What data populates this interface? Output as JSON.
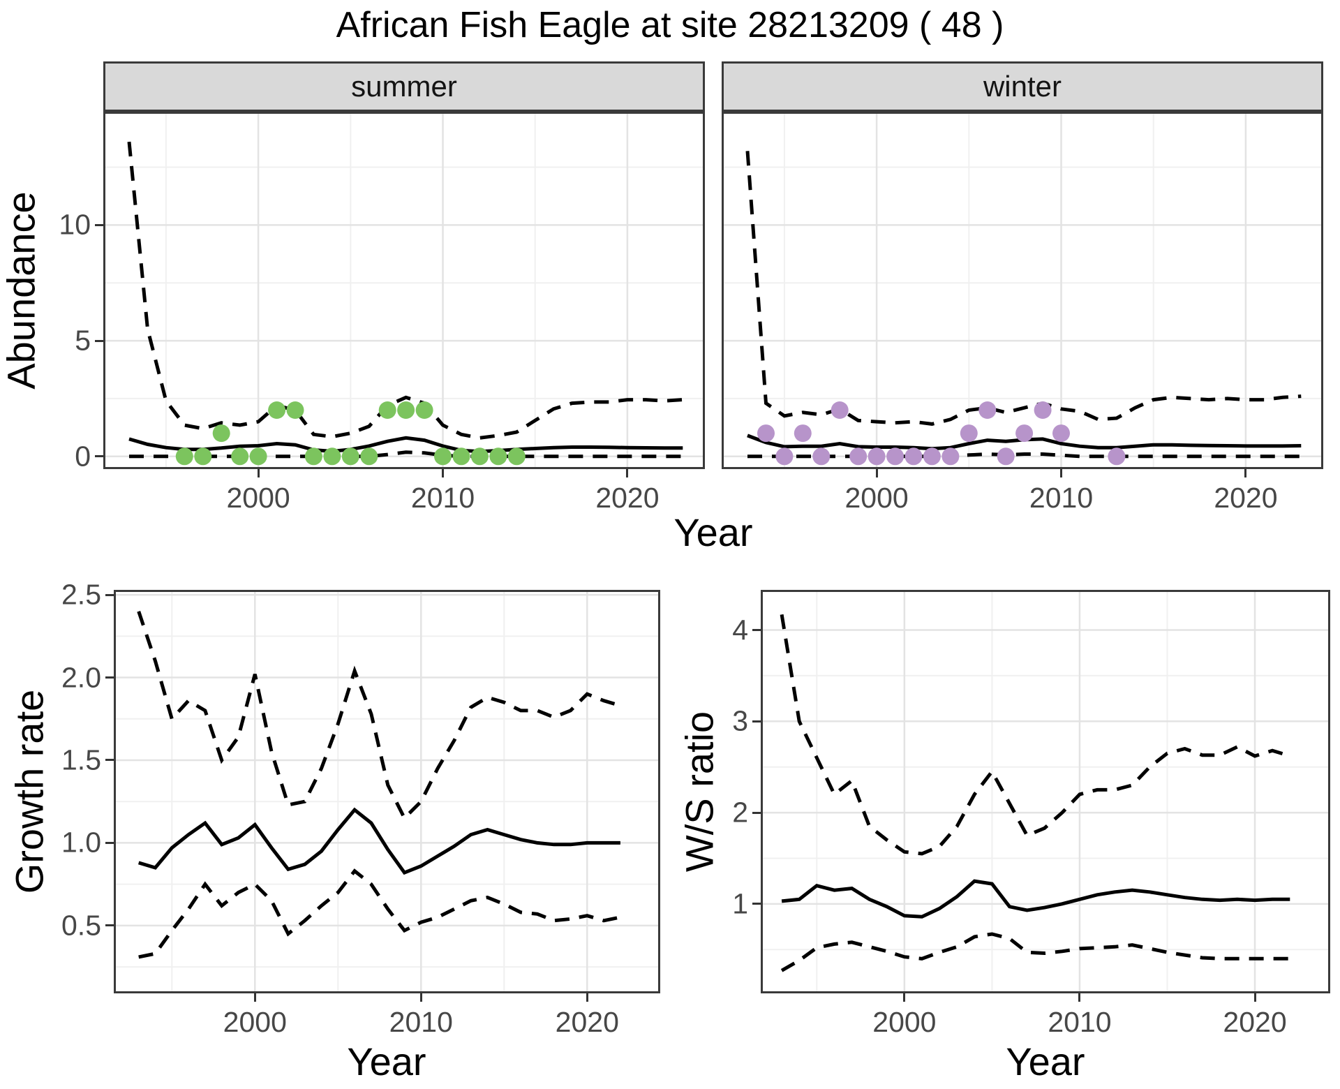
{
  "title": "African Fish Eagle at site 28213209 ( 48 )",
  "colors": {
    "summer_points": "#7cc45e",
    "winter_points": "#b794ca",
    "line": "#000000",
    "grid_major": "#e3e3e3",
    "grid_minor": "#f0f0f0",
    "panel_border": "#3a3a3a",
    "tick_text": "#474747",
    "strip_bg": "#d9d9d9"
  },
  "chart_data": [
    {
      "id": "abundance-summer",
      "type": "line",
      "facet": "summer",
      "xlabel": "Year",
      "ylabel": "Abundance",
      "xlim": [
        1991.6,
        2024.2
      ],
      "ylim": [
        -0.55,
        14.9
      ],
      "xticks": [
        2000,
        2010,
        2020
      ],
      "xtick_labels": [
        "2000",
        "2010",
        "2020"
      ],
      "xticks_minor": [
        1995,
        2005,
        2015
      ],
      "yticks": [
        0,
        5,
        10
      ],
      "ytick_labels": [
        "0",
        "5",
        "10"
      ],
      "yticks_minor": [
        2.5,
        7.5,
        12.5
      ],
      "x": [
        1993,
        1994,
        1995,
        1996,
        1997,
        1998,
        1999,
        2000,
        2001,
        2002,
        2003,
        2004,
        2005,
        2006,
        2007,
        2008,
        2009,
        2010,
        2011,
        2012,
        2013,
        2014,
        2015,
        2016,
        2017,
        2018,
        2019,
        2020,
        2021,
        2022,
        2023
      ],
      "series": [
        {
          "name": "median",
          "style": "solid",
          "values": [
            0.75,
            0.52,
            0.38,
            0.3,
            0.3,
            0.36,
            0.44,
            0.46,
            0.55,
            0.5,
            0.28,
            0.22,
            0.3,
            0.45,
            0.65,
            0.8,
            0.7,
            0.45,
            0.26,
            0.21,
            0.25,
            0.3,
            0.34,
            0.38,
            0.4,
            0.4,
            0.39,
            0.38,
            0.37,
            0.36,
            0.36
          ]
        },
        {
          "name": "upper-ci",
          "style": "dashed",
          "values": [
            13.6,
            5.5,
            2.4,
            1.35,
            1.2,
            1.45,
            1.35,
            1.5,
            2.2,
            2.0,
            0.95,
            0.85,
            1.0,
            1.3,
            2.2,
            2.55,
            2.3,
            1.35,
            0.95,
            0.8,
            0.9,
            1.05,
            1.55,
            2.05,
            2.3,
            2.35,
            2.35,
            2.45,
            2.45,
            2.4,
            2.45
          ]
        },
        {
          "name": "lower-ci",
          "style": "dashed",
          "values": [
            0,
            0,
            0,
            0,
            0,
            0,
            0,
            0,
            0,
            0,
            0,
            0,
            0,
            0,
            0.08,
            0.18,
            0.15,
            0.05,
            0,
            0,
            0,
            0,
            0,
            0,
            0,
            0,
            0,
            0,
            0,
            0,
            0
          ]
        }
      ],
      "points": {
        "name": "observed-counts",
        "color": "#7cc45e",
        "xy": [
          [
            1996,
            0
          ],
          [
            1997,
            0
          ],
          [
            1998,
            1
          ],
          [
            1999,
            0
          ],
          [
            2000,
            0
          ],
          [
            2001,
            2
          ],
          [
            2002,
            2
          ],
          [
            2003,
            0
          ],
          [
            2004,
            0
          ],
          [
            2005,
            0
          ],
          [
            2006,
            0
          ],
          [
            2007,
            2
          ],
          [
            2008,
            2
          ],
          [
            2009,
            2
          ],
          [
            2010,
            0
          ],
          [
            2011,
            0
          ],
          [
            2012,
            0
          ],
          [
            2013,
            0
          ],
          [
            2014,
            0
          ]
        ]
      }
    },
    {
      "id": "abundance-winter",
      "type": "line",
      "facet": "winter",
      "xlabel": "Year",
      "ylabel": "Abundance",
      "xlim": [
        1991.6,
        2024.2
      ],
      "ylim": [
        -0.55,
        14.9
      ],
      "xticks": [
        2000,
        2010,
        2020
      ],
      "xtick_labels": [
        "2000",
        "2010",
        "2020"
      ],
      "xticks_minor": [
        1995,
        2005,
        2015
      ],
      "yticks": [
        0,
        5,
        10
      ],
      "ytick_labels": [],
      "yticks_minor": [
        2.5,
        7.5,
        12.5
      ],
      "x": [
        1993,
        1994,
        1995,
        1996,
        1997,
        1998,
        1999,
        2000,
        2001,
        2002,
        2003,
        2004,
        2005,
        2006,
        2007,
        2008,
        2009,
        2010,
        2011,
        2012,
        2013,
        2014,
        2015,
        2016,
        2017,
        2018,
        2019,
        2020,
        2021,
        2022,
        2023
      ],
      "series": [
        {
          "name": "median",
          "style": "solid",
          "values": [
            0.9,
            0.6,
            0.42,
            0.44,
            0.44,
            0.55,
            0.42,
            0.4,
            0.4,
            0.38,
            0.33,
            0.38,
            0.55,
            0.7,
            0.65,
            0.72,
            0.75,
            0.55,
            0.44,
            0.38,
            0.38,
            0.44,
            0.5,
            0.5,
            0.48,
            0.47,
            0.46,
            0.45,
            0.45,
            0.45,
            0.46
          ]
        },
        {
          "name": "upper-ci",
          "style": "dashed",
          "values": [
            13.2,
            2.3,
            1.75,
            1.9,
            1.8,
            2.05,
            1.55,
            1.5,
            1.45,
            1.5,
            1.4,
            1.6,
            2.0,
            2.1,
            1.9,
            2.1,
            2.3,
            2.05,
            1.95,
            1.6,
            1.65,
            2.1,
            2.45,
            2.55,
            2.5,
            2.45,
            2.5,
            2.45,
            2.45,
            2.55,
            2.6
          ]
        },
        {
          "name": "lower-ci",
          "style": "dashed",
          "values": [
            0,
            0,
            0,
            0,
            0,
            0,
            0,
            0,
            0,
            0,
            0,
            0,
            0.06,
            0.1,
            0.07,
            0.1,
            0.1,
            0.05,
            0,
            0,
            0,
            0,
            0,
            0,
            0,
            0,
            0,
            0,
            0,
            0,
            0
          ]
        }
      ],
      "points": {
        "name": "observed-counts",
        "color": "#b794ca",
        "xy": [
          [
            1994,
            1
          ],
          [
            1995,
            0
          ],
          [
            1996,
            1
          ],
          [
            1997,
            0
          ],
          [
            1998,
            2
          ],
          [
            1999,
            0
          ],
          [
            2000,
            0
          ],
          [
            2001,
            0
          ],
          [
            2002,
            0
          ],
          [
            2003,
            0
          ],
          [
            2004,
            0
          ],
          [
            2005,
            1
          ],
          [
            2006,
            2
          ],
          [
            2007,
            0
          ],
          [
            2008,
            1
          ],
          [
            2009,
            2
          ],
          [
            2010,
            1
          ],
          [
            2013,
            0
          ]
        ]
      }
    },
    {
      "id": "growth-rate",
      "type": "line",
      "facet": "",
      "xlabel": "Year",
      "ylabel": "Growth rate",
      "xlim": [
        1991.5,
        2024.4
      ],
      "ylim": [
        0.09,
        2.53
      ],
      "xticks": [
        2000,
        2010,
        2020
      ],
      "xtick_labels": [
        "2000",
        "2010",
        "2020"
      ],
      "xticks_minor": [
        1995,
        2005,
        2015
      ],
      "yticks": [
        0.5,
        1.0,
        1.5,
        2.0,
        2.5
      ],
      "ytick_labels": [
        "0.5",
        "1.0",
        "1.5",
        "2.0",
        "2.5"
      ],
      "yticks_minor": [
        0.25,
        0.75,
        1.25,
        1.75,
        2.25
      ],
      "x": [
        1993,
        1994,
        1995,
        1996,
        1997,
        1998,
        1999,
        2000,
        2001,
        2002,
        2003,
        2004,
        2005,
        2006,
        2007,
        2008,
        2009,
        2010,
        2011,
        2012,
        2013,
        2014,
        2015,
        2016,
        2017,
        2018,
        2019,
        2020,
        2021,
        2022
      ],
      "series": [
        {
          "name": "median",
          "style": "solid",
          "values": [
            0.88,
            0.85,
            0.97,
            1.05,
            1.12,
            0.99,
            1.03,
            1.11,
            0.97,
            0.84,
            0.87,
            0.95,
            1.08,
            1.2,
            1.12,
            0.96,
            0.82,
            0.86,
            0.92,
            0.98,
            1.05,
            1.08,
            1.05,
            1.02,
            1.0,
            0.99,
            0.99,
            1.0,
            1.0,
            1.0
          ]
        },
        {
          "name": "upper-ci",
          "style": "dashed",
          "values": [
            2.4,
            2.1,
            1.75,
            1.86,
            1.8,
            1.5,
            1.64,
            2.02,
            1.55,
            1.23,
            1.25,
            1.45,
            1.72,
            2.04,
            1.78,
            1.35,
            1.15,
            1.25,
            1.45,
            1.62,
            1.82,
            1.88,
            1.85,
            1.8,
            1.8,
            1.76,
            1.8,
            1.9,
            1.86,
            1.83
          ]
        },
        {
          "name": "lower-ci",
          "style": "dashed",
          "values": [
            0.31,
            0.33,
            0.47,
            0.6,
            0.75,
            0.62,
            0.7,
            0.75,
            0.65,
            0.45,
            0.53,
            0.62,
            0.7,
            0.83,
            0.75,
            0.6,
            0.47,
            0.52,
            0.55,
            0.6,
            0.65,
            0.67,
            0.63,
            0.58,
            0.57,
            0.53,
            0.54,
            0.56,
            0.53,
            0.55
          ]
        }
      ]
    },
    {
      "id": "ws-ratio",
      "type": "line",
      "facet": "",
      "xlabel": "Year",
      "ylabel": "W/S ratio",
      "xlim": [
        1991.8,
        2024.3
      ],
      "ylim": [
        0.02,
        4.44
      ],
      "xticks": [
        2000,
        2010,
        2020
      ],
      "xtick_labels": [
        "2000",
        "2010",
        "2020"
      ],
      "xticks_minor": [
        1995,
        2005,
        2015
      ],
      "yticks": [
        1,
        2,
        3,
        4
      ],
      "ytick_labels": [
        "1",
        "2",
        "3",
        "4"
      ],
      "yticks_minor": [
        0.5,
        1.5,
        2.5,
        3.5
      ],
      "x": [
        1993,
        1994,
        1995,
        1996,
        1997,
        1998,
        1999,
        2000,
        2001,
        2002,
        2003,
        2004,
        2005,
        2006,
        2007,
        2008,
        2009,
        2010,
        2011,
        2012,
        2013,
        2014,
        2015,
        2016,
        2017,
        2018,
        2019,
        2020,
        2021,
        2022
      ],
      "series": [
        {
          "name": "median",
          "style": "solid",
          "values": [
            1.03,
            1.05,
            1.2,
            1.15,
            1.17,
            1.05,
            0.97,
            0.87,
            0.86,
            0.95,
            1.08,
            1.25,
            1.22,
            0.97,
            0.93,
            0.96,
            1.0,
            1.05,
            1.1,
            1.13,
            1.15,
            1.13,
            1.1,
            1.07,
            1.05,
            1.04,
            1.05,
            1.04,
            1.05,
            1.05
          ]
        },
        {
          "name": "upper-ci",
          "style": "dashed",
          "values": [
            4.17,
            3.0,
            2.6,
            2.2,
            2.35,
            1.85,
            1.7,
            1.57,
            1.55,
            1.63,
            1.85,
            2.2,
            2.45,
            2.1,
            1.75,
            1.83,
            2.0,
            2.2,
            2.25,
            2.25,
            2.3,
            2.5,
            2.65,
            2.7,
            2.63,
            2.63,
            2.72,
            2.62,
            2.68,
            2.62
          ]
        },
        {
          "name": "lower-ci",
          "style": "dashed",
          "values": [
            0.27,
            0.38,
            0.52,
            0.56,
            0.58,
            0.53,
            0.48,
            0.42,
            0.4,
            0.47,
            0.53,
            0.64,
            0.67,
            0.62,
            0.47,
            0.46,
            0.48,
            0.51,
            0.52,
            0.53,
            0.55,
            0.51,
            0.47,
            0.44,
            0.41,
            0.4,
            0.4,
            0.4,
            0.4,
            0.4
          ]
        }
      ]
    }
  ]
}
